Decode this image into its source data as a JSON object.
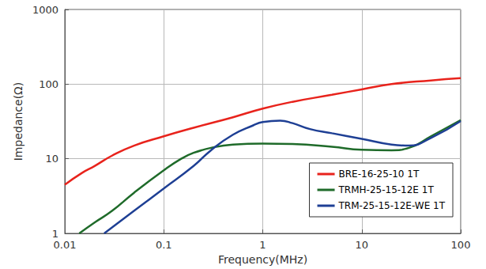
{
  "chart_data": {
    "type": "line",
    "x_label": "Frequency(MHz)",
    "y_label": "Impedance(Ω)",
    "log": true,
    "grid": true,
    "legend": "lower right",
    "xlim": [
      0.01,
      100
    ],
    "xticks": [
      0.01,
      0.1,
      1,
      10,
      100
    ],
    "ylim": [
      1,
      1000
    ],
    "yticks": [
      1,
      10,
      100,
      1000
    ],
    "series": [
      {
        "name": "BRE-16-25-10 1T",
        "color": "#e8231c",
        "x": [
          0.01,
          0.015,
          0.02,
          0.03,
          0.05,
          0.1,
          0.2,
          0.5,
          1,
          2,
          5,
          10,
          20,
          50,
          100
        ],
        "values": [
          4.5,
          6.5,
          8,
          11,
          15,
          20,
          26,
          36,
          47,
          58,
          72,
          85,
          100,
          112,
          120
        ]
      },
      {
        "name": "TRMH-25-15-12E 1T",
        "color": "#1f6b2a",
        "x": [
          0.014,
          0.02,
          0.03,
          0.05,
          0.1,
          0.15,
          0.2,
          0.3,
          0.5,
          1,
          2,
          5,
          10,
          20,
          30,
          50,
          100
        ],
        "values": [
          1,
          1.4,
          2,
          3.5,
          7,
          10,
          12,
          14,
          15.5,
          16,
          15.8,
          14.5,
          13.2,
          13,
          14,
          20,
          33
        ]
      },
      {
        "name": "TRM-25-15-12E-WE 1T",
        "color": "#1e3f94",
        "x": [
          0.025,
          0.03,
          0.05,
          0.1,
          0.2,
          0.3,
          0.5,
          0.8,
          1,
          1.5,
          2,
          3,
          5,
          10,
          20,
          30,
          50,
          100
        ],
        "values": [
          1,
          1.2,
          2,
          4,
          8,
          13,
          21,
          28,
          31,
          32.5,
          30,
          25,
          22,
          18.5,
          15.5,
          15,
          19,
          32
        ]
      }
    ]
  }
}
